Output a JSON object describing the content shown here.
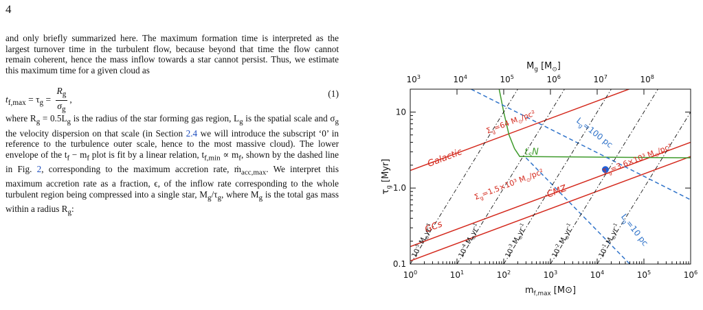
{
  "page_number": "4",
  "text": {
    "para1": "and only briefly summarized here. The maximum formation time is interpreted as the largest turnover time in the turbulent flow, because beyond that time the flow cannot remain coherent, hence the mass inflow towards a star cannot persist. Thus, we estimate this maximum time for a given cloud as",
    "equation": {
      "lhs": "t",
      "lhs_sub": "f,max",
      "eq1": " = τ",
      "tau_sub": "g",
      "eq2": " = ",
      "num": "R",
      "num_sub": "g",
      "den": "σ",
      "den_sub": "g",
      "tail": ",",
      "number": "(1)"
    },
    "para2_a": "where R",
    "para2_b": " = 0.5L",
    "para2_c": " is the radius of the star forming gas region, L",
    "para2_d": " is the spatial scale and σ",
    "para2_e": " the velocity dispersion on that scale (in Section ",
    "para2_link1": "2.4",
    "para2_f": " we will introduce the subscript ‘0’ in reference to the turbulence outer scale, hence to the most massive cloud). The lower envelope of the t",
    "para2_g": " − m",
    "para2_h": " plot is fit by a linear relation, t",
    "para2_i": " ∝ m",
    "para2_j": ", shown by the dashed line in Fig. ",
    "para2_link2": "2",
    "para2_k": ", corresponding to the maximum accretion rate, ṁ",
    "para2_l": ". We interpret this maximum accretion rate as a fraction, ϵ, of the inflow rate corresponding to the whole turbulent region being compressed into a single star, M",
    "para2_m": "/τ",
    "para2_n": ", where M",
    "para2_o": " is the total gas mass within a radius R",
    "para2_p": ":",
    "sub_g": "g",
    "sub_f": "f",
    "sub_fmin": "f,min",
    "sub_accmax": "acc,max"
  },
  "chart_data": {
    "type": "line",
    "xlabel": "m_{f,max} [M_⊙]",
    "top_xlabel": "M_g [M_⊙]",
    "ylabel": "τ_g [Myr]",
    "xscale": "log",
    "yscale": "log",
    "xlim": [
      1,
      1000000
    ],
    "ylim": [
      0.1,
      20
    ],
    "x_ticks": [
      "10^0",
      "10^1",
      "10^2",
      "10^3",
      "10^4",
      "10^5",
      "10^6"
    ],
    "top_x_ticks": [
      "10^3",
      "10^4",
      "10^5",
      "10^6",
      "10^7",
      "10^8"
    ],
    "y_ticks": [
      "0.1",
      "1.0",
      "10"
    ],
    "grid": false,
    "point": {
      "x": 15000,
      "y": 1.75,
      "color": "#1f5fd6"
    },
    "colors": {
      "red": "#d42a1e",
      "blue": "#2e72c9",
      "green": "#3d9a2a",
      "black": "#111111",
      "point": "#1f5fd6"
    },
    "labels": {
      "galactic": "Galactic",
      "cmz": "CMZ",
      "gcs": "GCs",
      "tsn": "t_SN",
      "sigma64": "Σ_g=64 M_⊙/pc²",
      "sigma15": "Σ_g=1.5×10³ M_⊙/pc²",
      "sigma36": "Σ_g=3.6×10³ M_⊙/pc²",
      "lg100": "L_g=100 pc",
      "lg10": "L_g=10 pc",
      "mdot": [
        "10^{-5} M_⊙yr^{-1}",
        "10^{-4} M_⊙yr^{-1}",
        "10^{-3} M_⊙yr^{-1}",
        "10^{-2} M_⊙yr^{-1}",
        "10^{-1} M_⊙yr^{-1}"
      ]
    },
    "series": [
      {
        "name": "Galactic",
        "color": "red",
        "x": [
          1,
          1000000
        ],
        "y": [
          1.7,
          40
        ]
      },
      {
        "name": "GCs",
        "color": "red",
        "x": [
          1,
          1000000
        ],
        "y": [
          0.17,
          4.0
        ]
      },
      {
        "name": "CMZ",
        "color": "red",
        "x": [
          1,
          1000000
        ],
        "y": [
          0.11,
          2.6
        ]
      },
      {
        "name": "t_SN",
        "color": "green",
        "x": [
          80,
          100,
          130,
          170,
          220,
          1000000
        ],
        "y": [
          20,
          10,
          5.0,
          3.3,
          2.6,
          2.5
        ]
      },
      {
        "name": "L_g=100 pc",
        "color": "blue",
        "dashed": true,
        "x": [
          20,
          1000000
        ],
        "y": [
          20,
          0.7
        ]
      },
      {
        "name": "L_g=10 pc",
        "color": "blue",
        "dashed": true,
        "x": [
          300,
          50000
        ],
        "y": [
          2.5,
          0.1
        ]
      },
      {
        "name": "10^-5",
        "color": "black",
        "dashdot": true,
        "x": [
          1,
          1000
        ],
        "y": [
          0.1,
          100
        ]
      },
      {
        "name": "10^-4",
        "color": "black",
        "dashdot": true,
        "x": [
          10,
          10000
        ],
        "y": [
          0.1,
          100
        ]
      },
      {
        "name": "10^-3",
        "color": "black",
        "dashdot": true,
        "x": [
          100,
          100000
        ],
        "y": [
          0.1,
          100
        ]
      },
      {
        "name": "10^-2",
        "color": "black",
        "dashdot": true,
        "x": [
          1000,
          1000000
        ],
        "y": [
          0.1,
          100
        ]
      },
      {
        "name": "10^-1",
        "color": "black",
        "dashdot": true,
        "x": [
          10000,
          10000000
        ],
        "y": [
          0.1,
          100
        ]
      }
    ]
  }
}
